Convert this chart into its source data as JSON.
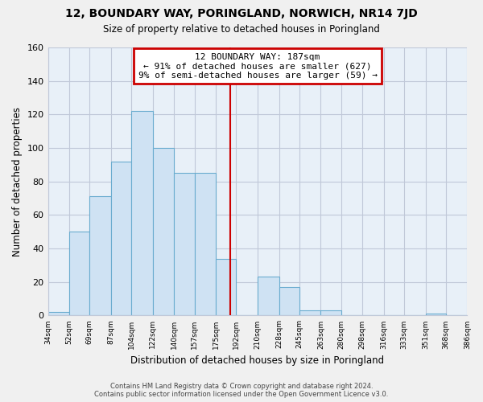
{
  "title": "12, BOUNDARY WAY, PORINGLAND, NORWICH, NR14 7JD",
  "subtitle": "Size of property relative to detached houses in Poringland",
  "xlabel": "Distribution of detached houses by size in Poringland",
  "ylabel": "Number of detached properties",
  "bar_edges": [
    34,
    52,
    69,
    87,
    104,
    122,
    140,
    157,
    175,
    192,
    210,
    228,
    245,
    263,
    280,
    298,
    316,
    333,
    351,
    368,
    386
  ],
  "bar_heights": [
    2,
    50,
    71,
    92,
    122,
    100,
    85,
    85,
    34,
    0,
    23,
    17,
    3,
    3,
    0,
    0,
    0,
    0,
    1,
    0
  ],
  "bar_color": "#cfe2f3",
  "bar_edge_color": "#6aaccf",
  "property_line_x": 187,
  "property_line_color": "#cc0000",
  "ylim": [
    0,
    160
  ],
  "yticks": [
    0,
    20,
    40,
    60,
    80,
    100,
    120,
    140,
    160
  ],
  "annotation_line1": "12 BOUNDARY WAY: 187sqm",
  "annotation_line2": "← 91% of detached houses are smaller (627)",
  "annotation_line3": "9% of semi-detached houses are larger (59) →",
  "footer_line1": "Contains HM Land Registry data © Crown copyright and database right 2024.",
  "footer_line2": "Contains public sector information licensed under the Open Government Licence v3.0.",
  "tick_labels": [
    "34sqm",
    "52sqm",
    "69sqm",
    "87sqm",
    "104sqm",
    "122sqm",
    "140sqm",
    "157sqm",
    "175sqm",
    "192sqm",
    "210sqm",
    "228sqm",
    "245sqm",
    "263sqm",
    "280sqm",
    "298sqm",
    "316sqm",
    "333sqm",
    "351sqm",
    "368sqm",
    "386sqm"
  ],
  "plot_bg_color": "#e8f0f8",
  "fig_bg_color": "#f0f0f0",
  "grid_color": "#c0c8d8",
  "annotation_bg": "white",
  "annotation_border": "#cc0000"
}
